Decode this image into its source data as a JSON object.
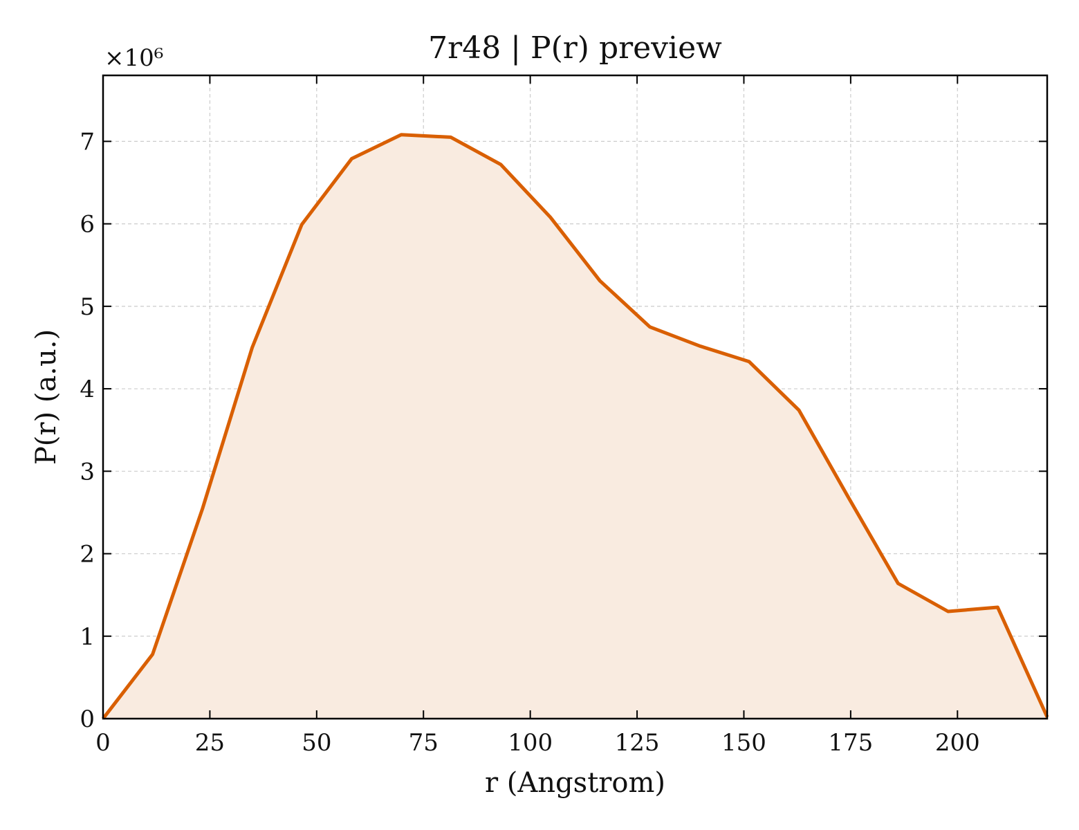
{
  "chart_data": {
    "type": "area",
    "title": "7r48 | P(r) preview",
    "xlabel": "r (Angstrom)",
    "ylabel": "P(r) (a.u.)",
    "y_offset_label": "×10⁶",
    "y_multiplier": 1000000,
    "xlim": [
      0,
      221
    ],
    "ylim": [
      0,
      7.8
    ],
    "x_ticks": [
      0,
      25,
      50,
      75,
      100,
      125,
      150,
      175,
      200
    ],
    "y_ticks": [
      0,
      1,
      2,
      3,
      4,
      5,
      6,
      7
    ],
    "grid": true,
    "legend": "none",
    "series": [
      {
        "x": [
          0,
          11.6,
          23.3,
          34.9,
          46.5,
          58.2,
          69.8,
          81.4,
          93.1,
          104.7,
          116.3,
          128.0,
          139.6,
          151.2,
          162.9,
          174.5,
          186.1,
          197.8,
          209.4,
          221.0
        ],
        "values": [
          0.0,
          0.78,
          2.55,
          4.5,
          5.99,
          6.79,
          7.08,
          7.05,
          6.72,
          6.08,
          5.31,
          4.75,
          4.52,
          4.33,
          3.74,
          2.68,
          1.64,
          1.3,
          1.35,
          0.02
        ]
      }
    ],
    "line_color": "#d95f02",
    "fill_color": "#f9ebe0",
    "grid_color": "#cccccc"
  }
}
